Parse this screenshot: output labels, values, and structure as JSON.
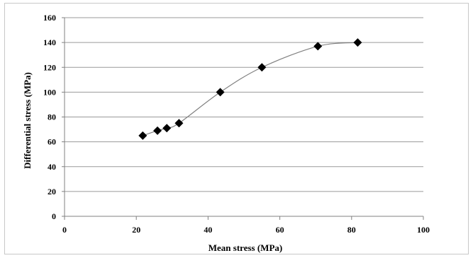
{
  "chart_data": {
    "type": "scatter",
    "title": "",
    "xlabel": "Mean stress (MPa)",
    "ylabel": "Differential stress (MPa)",
    "xlim": [
      0,
      100
    ],
    "ylim": [
      0,
      160
    ],
    "x_ticks": [
      0,
      20,
      40,
      60,
      80,
      100
    ],
    "y_ticks": [
      0,
      20,
      40,
      60,
      80,
      100,
      120,
      140,
      160
    ],
    "x_tick_labels": [
      "0",
      "20",
      "40",
      "60",
      "80",
      "100"
    ],
    "y_tick_labels": [
      "0",
      "20",
      "40",
      "60",
      "80",
      "100",
      "120",
      "140",
      "160"
    ],
    "grid": "horizontal",
    "legend": "none",
    "marker": "diamond",
    "line_style": "smoothed",
    "colors": {
      "marker": "#000000",
      "line": "#808080",
      "grid": "#9a9a9a"
    },
    "series": [
      {
        "x": [
          21.8,
          25.9,
          28.5,
          31.9,
          43.4,
          55.0,
          70.6,
          81.7
        ],
        "y": [
          65,
          69,
          71,
          75,
          100,
          120,
          137,
          140
        ]
      }
    ]
  }
}
